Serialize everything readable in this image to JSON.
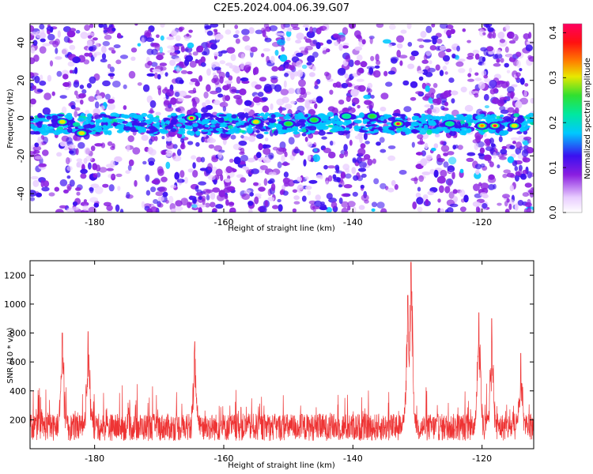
{
  "title": "C2E5.2024.004.06.39.G07",
  "colors": {
    "snr_line": "#ee3333",
    "axis": "#000000"
  },
  "chart_data": [
    {
      "type": "heatmap",
      "xlabel": "Height of straight line (km)",
      "ylabel": "Frequency (Hz)",
      "xlim": [
        -190,
        -112
      ],
      "ylim": [
        -50,
        50
      ],
      "x_ticks": [
        "-180",
        "-160",
        "-140",
        "-120"
      ],
      "y_ticks": [
        "40",
        "20",
        "0",
        "-20",
        "-40"
      ],
      "colorbar": {
        "label": "Normalized spectral amplitude",
        "range": [
          0.0,
          0.42
        ],
        "ticks": [
          "0.4",
          "0.3",
          "0.2",
          "0.1",
          "0.0"
        ]
      },
      "band_center_hz": -3,
      "hotspots": [
        {
          "x": -185,
          "y": -2,
          "value": 0.28
        },
        {
          "x": -182,
          "y": -8,
          "value": 0.3
        },
        {
          "x": -165,
          "y": 0,
          "value": 0.38
        },
        {
          "x": -155,
          "y": -2,
          "value": 0.3
        },
        {
          "x": -150,
          "y": -3,
          "value": 0.22
        },
        {
          "x": -146,
          "y": -1,
          "value": 0.22
        },
        {
          "x": -141,
          "y": 1,
          "value": 0.2
        },
        {
          "x": -137,
          "y": 1,
          "value": 0.25
        },
        {
          "x": -133,
          "y": -3,
          "value": 0.4
        },
        {
          "x": -125,
          "y": -3,
          "value": 0.2
        },
        {
          "x": -120,
          "y": -4,
          "value": 0.32
        },
        {
          "x": -118,
          "y": -4,
          "value": 0.38
        },
        {
          "x": -115,
          "y": -4,
          "value": 0.3
        }
      ]
    },
    {
      "type": "line",
      "xlabel": "Height of straight line (km)",
      "ylabel": "SNR (10 * v/v)",
      "xlim": [
        -190,
        -112
      ],
      "ylim": [
        0,
        1300
      ],
      "x_ticks": [
        "-180",
        "-160",
        "-140",
        "-120"
      ],
      "y_ticks": [
        "1200",
        "1000",
        "800",
        "600",
        "400",
        "200"
      ],
      "baseline": 180,
      "peaks": [
        {
          "x": -185,
          "y": 800
        },
        {
          "x": -181,
          "y": 810
        },
        {
          "x": -164.5,
          "y": 740
        },
        {
          "x": -131.5,
          "y": 1060
        },
        {
          "x": -131,
          "y": 1290
        },
        {
          "x": -120.5,
          "y": 940
        },
        {
          "x": -118.5,
          "y": 900
        },
        {
          "x": -114,
          "y": 660
        }
      ]
    }
  ]
}
